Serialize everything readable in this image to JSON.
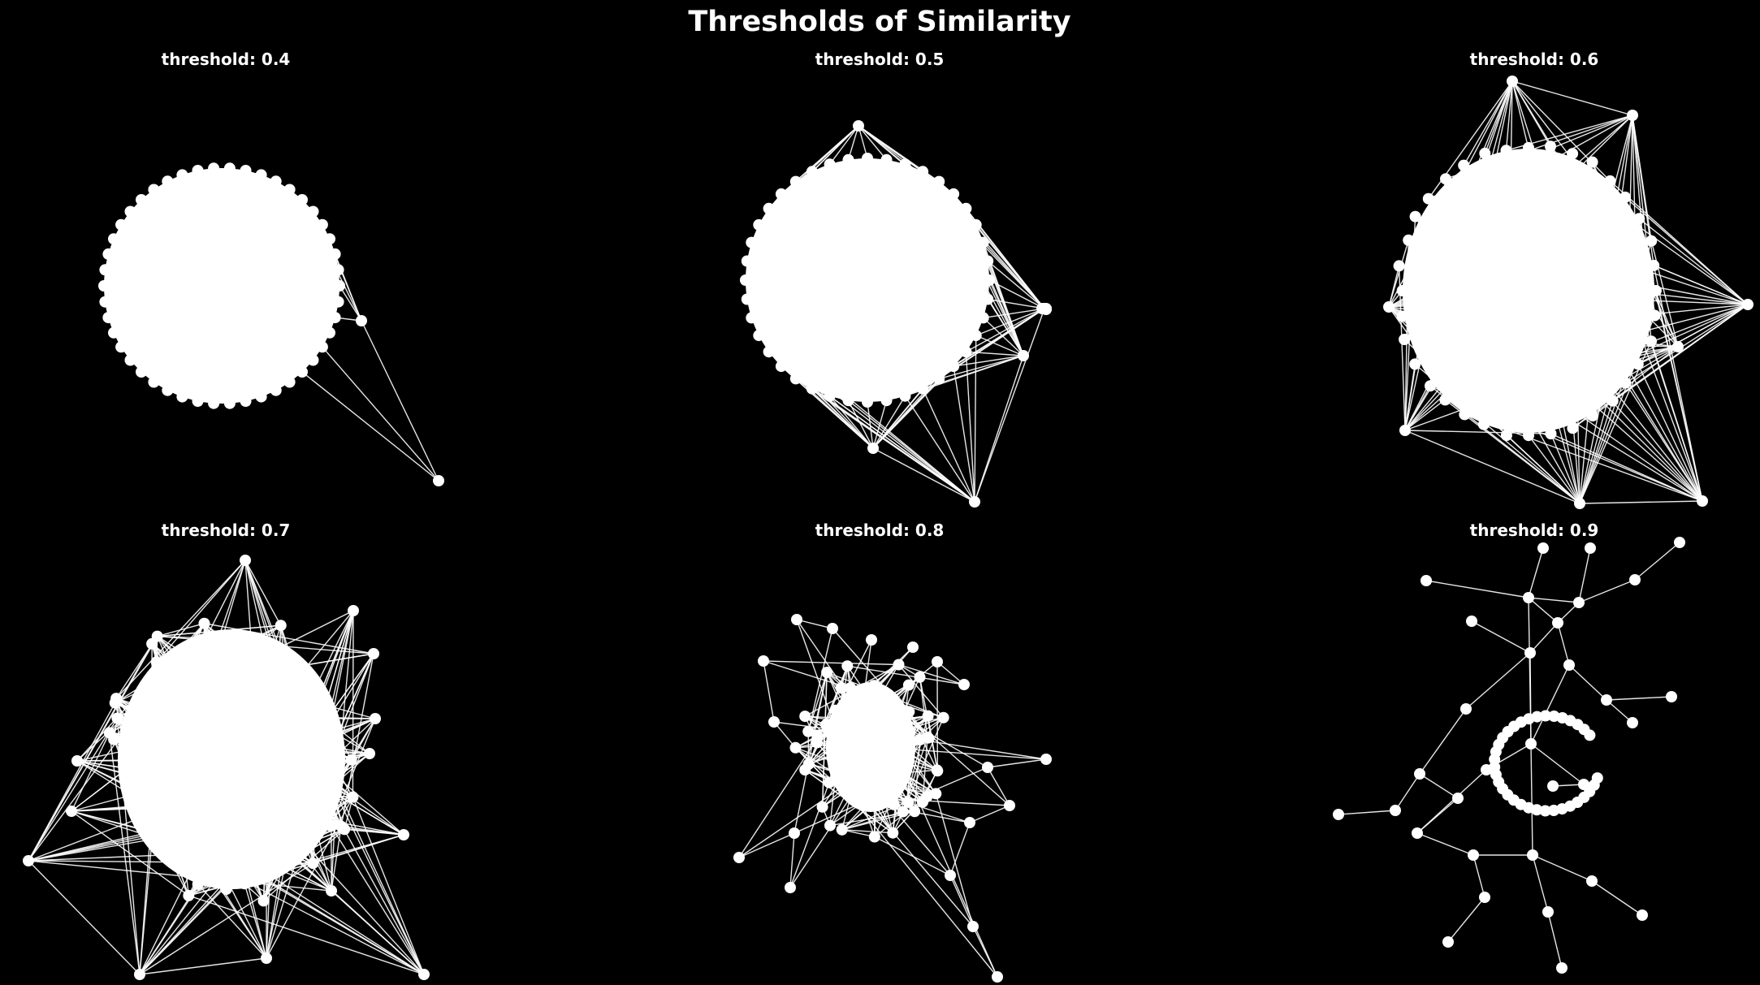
{
  "figure": {
    "title": "Thresholds of Similarity",
    "background": "#000000",
    "foreground": "#ffffff"
  },
  "panels": [
    {
      "title": "threshold: 0.4",
      "threshold": 0.4
    },
    {
      "title": "threshold: 0.5",
      "threshold": 0.5
    },
    {
      "title": "threshold: 0.6",
      "threshold": 0.6
    },
    {
      "title": "threshold: 0.7",
      "threshold": 0.7
    },
    {
      "title": "threshold: 0.8",
      "threshold": 0.8
    },
    {
      "title": "threshold: 0.9",
      "threshold": 0.9
    }
  ]
}
